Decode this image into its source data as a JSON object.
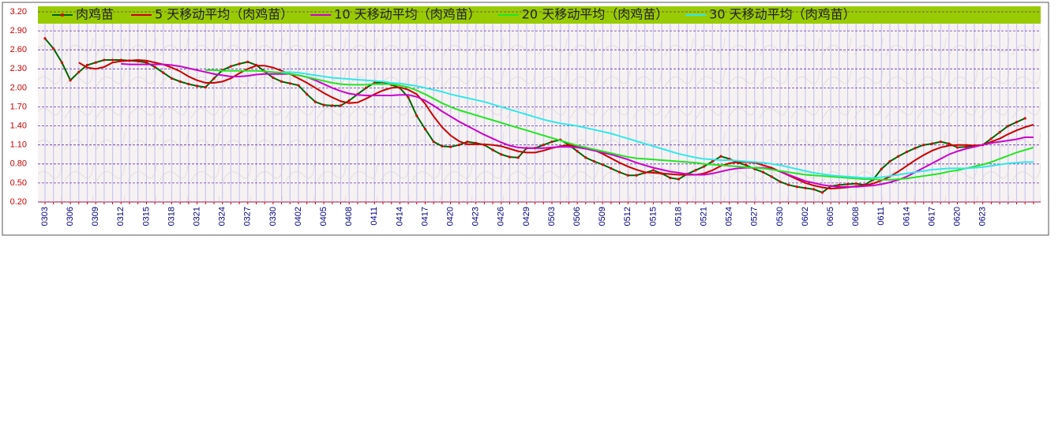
{
  "chart_data": {
    "type": "line",
    "categories": [
      "0303",
      null,
      null,
      "0306",
      null,
      null,
      "0309",
      null,
      null,
      "0312",
      null,
      null,
      "0315",
      null,
      null,
      "0318",
      null,
      null,
      "0321",
      null,
      null,
      "0324",
      null,
      null,
      "0327",
      null,
      null,
      "0330",
      null,
      null,
      "0402",
      null,
      null,
      "0405",
      null,
      null,
      "0408",
      null,
      null,
      "0411",
      null,
      null,
      "0414",
      null,
      null,
      "0417",
      null,
      null,
      "0420",
      null,
      null,
      "0423",
      null,
      null,
      "0426",
      null,
      null,
      "0429",
      null,
      null,
      "0503",
      null,
      null,
      "0506",
      null,
      null,
      "0509",
      null,
      null,
      "0512",
      null,
      null,
      "0515",
      null,
      null,
      "0518",
      null,
      null,
      "0521",
      null,
      null,
      "0524",
      null,
      null,
      "0527",
      null,
      null,
      "0530",
      null,
      null,
      "0602",
      null,
      null,
      "0605",
      null,
      null,
      "0608",
      null,
      null,
      "0611",
      null,
      null,
      "0614",
      null,
      null,
      "0617",
      null,
      null,
      "0620",
      null,
      null,
      "0623",
      null,
      null,
      null,
      null,
      null,
      null
    ],
    "series": [
      {
        "name": "肉鸡苗",
        "color": "#006600",
        "marker_color": "#dd0000",
        "values": [
          2.78,
          2.62,
          2.4,
          2.12,
          2.25,
          2.36,
          2.4,
          2.44,
          2.44,
          2.44,
          2.43,
          2.42,
          2.4,
          2.33,
          2.24,
          2.15,
          2.1,
          2.06,
          2.03,
          2.01,
          2.15,
          2.28,
          2.34,
          2.38,
          2.41,
          2.36,
          2.26,
          2.16,
          2.1,
          2.07,
          2.04,
          1.9,
          1.78,
          1.73,
          1.72,
          1.72,
          1.8,
          1.9,
          2.0,
          2.08,
          2.09,
          2.05,
          2.0,
          1.85,
          1.56,
          1.35,
          1.15,
          1.08,
          1.07,
          1.1,
          1.15,
          1.13,
          1.1,
          1.02,
          0.95,
          0.91,
          0.9,
          1.05,
          1.05,
          1.1,
          1.15,
          1.18,
          1.1,
          1.0,
          0.9,
          0.84,
          0.79,
          0.73,
          0.67,
          0.62,
          0.62,
          0.66,
          0.7,
          0.65,
          0.58,
          0.56,
          0.64,
          0.7,
          0.76,
          0.84,
          0.92,
          0.88,
          0.82,
          0.78,
          0.72,
          0.67,
          0.6,
          0.52,
          0.47,
          0.44,
          0.42,
          0.4,
          0.35,
          0.45,
          0.47,
          0.48,
          0.49,
          0.47,
          0.55,
          0.72,
          0.84,
          0.92,
          0.99,
          1.05,
          1.1,
          1.12,
          1.15,
          1.12,
          1.06,
          1.07,
          1.09,
          1.1,
          1.2,
          1.3,
          1.4,
          1.46,
          1.52,
          null
        ]
      },
      {
        "name": "5 天移动平均（肉鸡苗）",
        "color": "#cc0000",
        "values": [
          null,
          null,
          null,
          null,
          2.4,
          2.32,
          2.3,
          2.33,
          2.4,
          2.42,
          2.43,
          2.44,
          2.43,
          2.4,
          2.37,
          2.32,
          2.26,
          2.18,
          2.12,
          2.08,
          2.08,
          2.1,
          2.15,
          2.23,
          2.3,
          2.35,
          2.35,
          2.32,
          2.27,
          2.22,
          2.15,
          2.08,
          2.0,
          1.92,
          1.85,
          1.79,
          1.76,
          1.77,
          1.83,
          1.9,
          1.96,
          2.0,
          2.01,
          1.97,
          1.9,
          1.75,
          1.55,
          1.38,
          1.25,
          1.16,
          1.11,
          1.11,
          1.11,
          1.1,
          1.08,
          1.04,
          1.0,
          0.98,
          0.98,
          1.01,
          1.05,
          1.08,
          1.1,
          1.08,
          1.06,
          1.02,
          0.96,
          0.89,
          0.82,
          0.76,
          0.71,
          0.67,
          0.66,
          0.65,
          0.64,
          0.63,
          0.63,
          0.63,
          0.65,
          0.7,
          0.77,
          0.81,
          0.83,
          0.83,
          0.82,
          0.78,
          0.74,
          0.68,
          0.62,
          0.56,
          0.5,
          0.46,
          0.43,
          0.41,
          0.42,
          0.43,
          0.45,
          0.46,
          0.49,
          0.54,
          0.6,
          0.68,
          0.77,
          0.86,
          0.94,
          1.01,
          1.06,
          1.09,
          1.1,
          1.1,
          1.09,
          1.1,
          1.15,
          1.2,
          1.27,
          1.33,
          1.38,
          1.42
        ]
      },
      {
        "name": "10 天移动平均（肉鸡苗）",
        "color": "#cc00cc",
        "values": [
          null,
          null,
          null,
          null,
          null,
          null,
          null,
          null,
          null,
          2.38,
          2.37,
          2.37,
          2.37,
          2.37,
          2.37,
          2.36,
          2.34,
          2.31,
          2.28,
          2.25,
          2.22,
          2.2,
          2.18,
          2.18,
          2.19,
          2.21,
          2.22,
          2.22,
          2.22,
          2.22,
          2.2,
          2.17,
          2.12,
          2.06,
          2.0,
          1.95,
          1.91,
          1.89,
          1.88,
          1.88,
          1.88,
          1.88,
          1.89,
          1.89,
          1.86,
          1.8,
          1.72,
          1.63,
          1.55,
          1.47,
          1.4,
          1.33,
          1.26,
          1.2,
          1.14,
          1.09,
          1.06,
          1.05,
          1.05,
          1.05,
          1.06,
          1.07,
          1.07,
          1.06,
          1.04,
          1.01,
          0.98,
          0.95,
          0.91,
          0.87,
          0.82,
          0.78,
          0.74,
          0.71,
          0.68,
          0.66,
          0.64,
          0.63,
          0.63,
          0.65,
          0.68,
          0.71,
          0.73,
          0.74,
          0.74,
          0.74,
          0.72,
          0.68,
          0.63,
          0.58,
          0.53,
          0.5,
          0.47,
          0.45,
          0.44,
          0.44,
          0.44,
          0.45,
          0.46,
          0.48,
          0.51,
          0.55,
          0.6,
          0.67,
          0.74,
          0.81,
          0.88,
          0.95,
          1.0,
          1.04,
          1.07,
          1.1,
          1.13,
          1.15,
          1.17,
          1.19,
          1.22,
          1.22
        ]
      },
      {
        "name": "20 天移动平均（肉鸡苗）",
        "color": "#22e622",
        "values": [
          null,
          null,
          null,
          null,
          null,
          null,
          null,
          null,
          null,
          null,
          null,
          null,
          null,
          null,
          null,
          null,
          null,
          null,
          null,
          2.28,
          2.28,
          2.27,
          2.27,
          2.27,
          2.27,
          2.27,
          2.26,
          2.25,
          2.24,
          2.22,
          2.2,
          2.17,
          2.14,
          2.11,
          2.08,
          2.06,
          2.05,
          2.05,
          2.05,
          2.06,
          2.06,
          2.06,
          2.04,
          2.01,
          1.96,
          1.9,
          1.83,
          1.76,
          1.7,
          1.65,
          1.61,
          1.57,
          1.53,
          1.49,
          1.45,
          1.41,
          1.37,
          1.33,
          1.29,
          1.25,
          1.21,
          1.17,
          1.13,
          1.09,
          1.06,
          1.03,
          1.0,
          0.97,
          0.94,
          0.91,
          0.89,
          0.88,
          0.87,
          0.86,
          0.85,
          0.84,
          0.83,
          0.82,
          0.8,
          0.79,
          0.78,
          0.77,
          0.76,
          0.75,
          0.74,
          0.73,
          0.71,
          0.69,
          0.67,
          0.65,
          0.63,
          0.62,
          0.61,
          0.6,
          0.59,
          0.58,
          0.57,
          0.56,
          0.56,
          0.55,
          0.55,
          0.56,
          0.57,
          0.59,
          0.61,
          0.63,
          0.65,
          0.68,
          0.7,
          0.73,
          0.76,
          0.79,
          0.83,
          0.88,
          0.93,
          0.98,
          1.02,
          1.06
        ]
      },
      {
        "name": "30 天移动平均（肉鸡苗）",
        "color": "#33e8e8",
        "values": [
          null,
          null,
          null,
          null,
          null,
          null,
          null,
          null,
          null,
          null,
          null,
          null,
          null,
          null,
          null,
          null,
          null,
          null,
          null,
          null,
          null,
          null,
          null,
          null,
          null,
          null,
          null,
          null,
          2.25,
          2.25,
          2.24,
          2.22,
          2.2,
          2.18,
          2.16,
          2.15,
          2.14,
          2.13,
          2.12,
          2.11,
          2.1,
          2.08,
          2.07,
          2.05,
          2.03,
          2.0,
          1.97,
          1.94,
          1.9,
          1.87,
          1.84,
          1.81,
          1.78,
          1.74,
          1.7,
          1.66,
          1.62,
          1.58,
          1.54,
          1.5,
          1.47,
          1.44,
          1.42,
          1.4,
          1.37,
          1.34,
          1.31,
          1.28,
          1.24,
          1.2,
          1.16,
          1.12,
          1.08,
          1.04,
          1.0,
          0.96,
          0.93,
          0.9,
          0.88,
          0.87,
          0.86,
          0.86,
          0.85,
          0.84,
          0.83,
          0.82,
          0.8,
          0.78,
          0.75,
          0.72,
          0.69,
          0.66,
          0.64,
          0.62,
          0.61,
          0.6,
          0.59,
          0.58,
          0.58,
          0.59,
          0.61,
          0.63,
          0.65,
          0.67,
          0.69,
          0.71,
          0.72,
          0.73,
          0.73,
          0.73,
          0.74,
          0.75,
          0.77,
          0.79,
          0.81,
          0.82,
          0.83,
          0.83
        ]
      }
    ],
    "ylim": [
      0.2,
      3.2
    ],
    "yticks": [
      {
        "value": 0.2,
        "label": "0.20"
      },
      {
        "value": 0.5,
        "label": "0.50"
      },
      {
        "value": 0.8,
        "label": "0.80"
      },
      {
        "value": 1.1,
        "label": "1.10"
      },
      {
        "value": 1.4,
        "label": "1.40"
      },
      {
        "value": 1.7,
        "label": "1.70"
      },
      {
        "value": 2.0,
        "label": "2.00"
      },
      {
        "value": 2.3,
        "label": "2.30"
      },
      {
        "value": 2.6,
        "label": "2.60"
      },
      {
        "value": 2.9,
        "label": "2.90"
      },
      {
        "value": 3.2,
        "label": "3.20"
      }
    ],
    "grid": true,
    "legend": "top"
  }
}
